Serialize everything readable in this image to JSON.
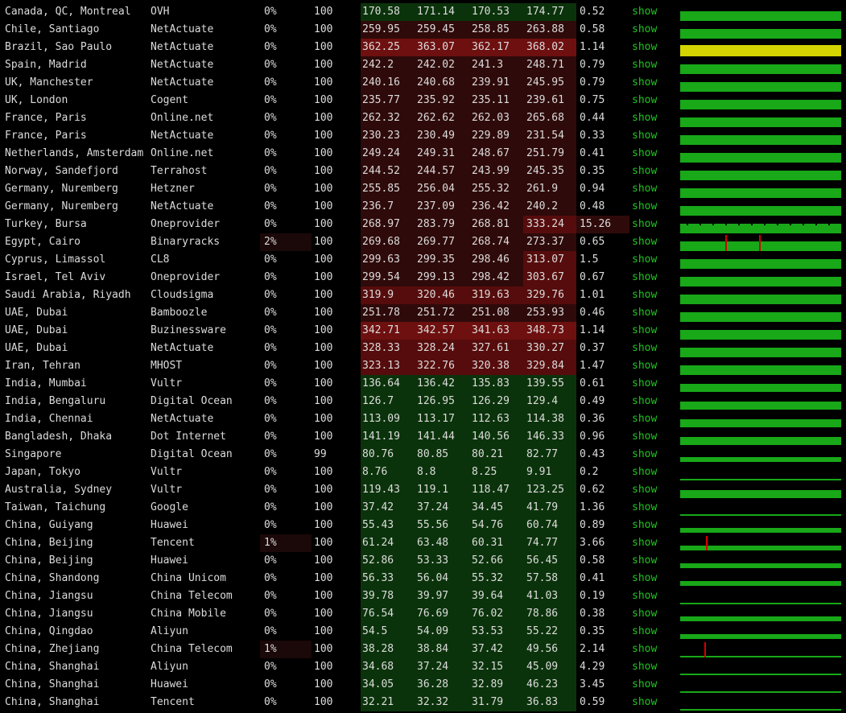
{
  "colors": {
    "background": "#000000",
    "text": "#dcdcdc",
    "link": "#22c322",
    "latency_low": "#0b330b",
    "latency_mid": "#2f0a0a",
    "latency_high": "#560c0c",
    "latency_very_high": "#6e1010",
    "loss_cell": "#1b0808",
    "graph_ok": "#18a818",
    "graph_warn": "#d4d400",
    "graph_spike": "#d40000"
  },
  "rows": [
    {
      "location": "Canada, QC, Montreal",
      "provider": "OVH",
      "loss": "0%",
      "sent": "100",
      "avg": "170.58",
      "last": "171.14",
      "best": "170.53",
      "worst": "174.77",
      "stdev": "0.52",
      "link": "show",
      "graph": "full",
      "spikes": []
    },
    {
      "location": "Chile, Santiago",
      "provider": "NetActuate",
      "loss": "0%",
      "sent": "100",
      "avg": "259.95",
      "last": "259.45",
      "best": "258.85",
      "worst": "263.88",
      "stdev": "0.58",
      "link": "show",
      "graph": "full",
      "spikes": []
    },
    {
      "location": "Brazil, Sao Paulo",
      "provider": "NetActuate",
      "loss": "0%",
      "sent": "100",
      "avg": "362.25",
      "last": "363.07",
      "best": "362.17",
      "worst": "368.02",
      "stdev": "1.14",
      "link": "show",
      "graph": "yellow",
      "spikes": []
    },
    {
      "location": "Spain, Madrid",
      "provider": "NetActuate",
      "loss": "0%",
      "sent": "100",
      "avg": "242.2",
      "last": "242.02",
      "best": "241.3",
      "worst": "248.71",
      "stdev": "0.79",
      "link": "show",
      "graph": "full",
      "spikes": []
    },
    {
      "location": "UK, Manchester",
      "provider": "NetActuate",
      "loss": "0%",
      "sent": "100",
      "avg": "240.16",
      "last": "240.68",
      "best": "239.91",
      "worst": "245.95",
      "stdev": "0.79",
      "link": "show",
      "graph": "full",
      "spikes": []
    },
    {
      "location": "UK, London",
      "provider": "Cogent",
      "loss": "0%",
      "sent": "100",
      "avg": "235.77",
      "last": "235.92",
      "best": "235.11",
      "worst": "239.61",
      "stdev": "0.75",
      "link": "show",
      "graph": "full",
      "spikes": []
    },
    {
      "location": "France, Paris",
      "provider": "Online.net",
      "loss": "0%",
      "sent": "100",
      "avg": "262.32",
      "last": "262.62",
      "best": "262.03",
      "worst": "265.68",
      "stdev": "0.44",
      "link": "show",
      "graph": "full",
      "spikes": []
    },
    {
      "location": "France, Paris",
      "provider": "NetActuate",
      "loss": "0%",
      "sent": "100",
      "avg": "230.23",
      "last": "230.49",
      "best": "229.89",
      "worst": "231.54",
      "stdev": "0.33",
      "link": "show",
      "graph": "full",
      "spikes": []
    },
    {
      "location": "Netherlands, Amsterdam",
      "provider": "Online.net",
      "loss": "0%",
      "sent": "100",
      "avg": "249.24",
      "last": "249.31",
      "best": "248.67",
      "worst": "251.79",
      "stdev": "0.41",
      "link": "show",
      "graph": "full",
      "spikes": []
    },
    {
      "location": "Norway, Sandefjord",
      "provider": "Terrahost",
      "loss": "0%",
      "sent": "100",
      "avg": "244.52",
      "last": "244.57",
      "best": "243.99",
      "worst": "245.35",
      "stdev": "0.35",
      "link": "show",
      "graph": "full",
      "spikes": []
    },
    {
      "location": "Germany, Nuremberg",
      "provider": "Hetzner",
      "loss": "0%",
      "sent": "100",
      "avg": "255.85",
      "last": "256.04",
      "best": "255.32",
      "worst": "261.9",
      "stdev": "0.94",
      "link": "show",
      "graph": "full",
      "spikes": []
    },
    {
      "location": "Germany, Nuremberg",
      "provider": "NetActuate",
      "loss": "0%",
      "sent": "100",
      "avg": "236.7",
      "last": "237.09",
      "best": "236.42",
      "worst": "240.2",
      "stdev": "0.48",
      "link": "show",
      "graph": "full",
      "spikes": []
    },
    {
      "location": "Turkey, Bursa",
      "provider": "Oneprovider",
      "loss": "0%",
      "sent": "100",
      "avg": "268.97",
      "last": "283.79",
      "best": "268.81",
      "worst": "333.24",
      "stdev": "15.26",
      "link": "show",
      "graph": "jagged",
      "spikes": []
    },
    {
      "location": "Egypt, Cairo",
      "provider": "Binaryracks",
      "loss": "2%",
      "sent": "100",
      "avg": "269.68",
      "last": "269.77",
      "best": "268.74",
      "worst": "273.37",
      "stdev": "0.65",
      "link": "show",
      "graph": "full",
      "spikes": [
        0.28,
        0.49
      ]
    },
    {
      "location": "Cyprus, Limassol",
      "provider": "CL8",
      "loss": "0%",
      "sent": "100",
      "avg": "299.63",
      "last": "299.35",
      "best": "298.46",
      "worst": "313.07",
      "stdev": "1.5",
      "link": "show",
      "graph": "full",
      "spikes": []
    },
    {
      "location": "Israel, Tel Aviv",
      "provider": "Oneprovider",
      "loss": "0%",
      "sent": "100",
      "avg": "299.54",
      "last": "299.13",
      "best": "298.42",
      "worst": "303.67",
      "stdev": "0.67",
      "link": "show",
      "graph": "full",
      "spikes": []
    },
    {
      "location": "Saudi Arabia, Riyadh",
      "provider": "Cloudsigma",
      "loss": "0%",
      "sent": "100",
      "avg": "319.9",
      "last": "320.46",
      "best": "319.63",
      "worst": "329.76",
      "stdev": "1.01",
      "link": "show",
      "graph": "full",
      "spikes": []
    },
    {
      "location": "UAE, Dubai",
      "provider": "Bamboozle",
      "loss": "0%",
      "sent": "100",
      "avg": "251.78",
      "last": "251.72",
      "best": "251.08",
      "worst": "253.93",
      "stdev": "0.46",
      "link": "show",
      "graph": "full",
      "spikes": []
    },
    {
      "location": "UAE, Dubai",
      "provider": "Buzinessware",
      "loss": "0%",
      "sent": "100",
      "avg": "342.71",
      "last": "342.57",
      "best": "341.63",
      "worst": "348.73",
      "stdev": "1.14",
      "link": "show",
      "graph": "full",
      "spikes": []
    },
    {
      "location": "UAE, Dubai",
      "provider": "NetActuate",
      "loss": "0%",
      "sent": "100",
      "avg": "328.33",
      "last": "328.24",
      "best": "327.61",
      "worst": "330.27",
      "stdev": "0.37",
      "link": "show",
      "graph": "full",
      "spikes": []
    },
    {
      "location": "Iran, Tehran",
      "provider": "MHOST",
      "loss": "0%",
      "sent": "100",
      "avg": "323.13",
      "last": "322.76",
      "best": "320.38",
      "worst": "329.84",
      "stdev": "1.47",
      "link": "show",
      "graph": "full",
      "spikes": []
    },
    {
      "location": "India, Mumbai",
      "provider": "Vultr",
      "loss": "0%",
      "sent": "100",
      "avg": "136.64",
      "last": "136.42",
      "best": "135.83",
      "worst": "139.55",
      "stdev": "0.61",
      "link": "show",
      "graph": "medium",
      "spikes": []
    },
    {
      "location": "India, Bengaluru",
      "provider": "Digital Ocean",
      "loss": "0%",
      "sent": "100",
      "avg": "126.7",
      "last": "126.95",
      "best": "126.29",
      "worst": "129.4",
      "stdev": "0.49",
      "link": "show",
      "graph": "medium",
      "spikes": []
    },
    {
      "location": "India, Chennai",
      "provider": "NetActuate",
      "loss": "0%",
      "sent": "100",
      "avg": "113.09",
      "last": "113.17",
      "best": "112.63",
      "worst": "114.38",
      "stdev": "0.36",
      "link": "show",
      "graph": "medium",
      "spikes": []
    },
    {
      "location": "Bangladesh, Dhaka",
      "provider": "Dot Internet",
      "loss": "0%",
      "sent": "100",
      "avg": "141.19",
      "last": "141.44",
      "best": "140.56",
      "worst": "146.33",
      "stdev": "0.96",
      "link": "show",
      "graph": "medium",
      "spikes": []
    },
    {
      "location": "Singapore",
      "provider": "Digital Ocean",
      "loss": "0%",
      "sent": "99",
      "avg": "80.76",
      "last": "80.85",
      "best": "80.21",
      "worst": "82.77",
      "stdev": "0.43",
      "link": "show",
      "graph": "short",
      "spikes": []
    },
    {
      "location": "Japan, Tokyo",
      "provider": "Vultr",
      "loss": "0%",
      "sent": "100",
      "avg": "8.76",
      "last": "8.8",
      "best": "8.25",
      "worst": "9.91",
      "stdev": "0.2",
      "link": "show",
      "graph": "thin",
      "spikes": []
    },
    {
      "location": "Australia, Sydney",
      "provider": "Vultr",
      "loss": "0%",
      "sent": "100",
      "avg": "119.43",
      "last": "119.1",
      "best": "118.47",
      "worst": "123.25",
      "stdev": "0.62",
      "link": "show",
      "graph": "medium",
      "spikes": []
    },
    {
      "location": "Taiwan, Taichung",
      "provider": "Google",
      "loss": "0%",
      "sent": "100",
      "avg": "37.42",
      "last": "37.24",
      "best": "34.45",
      "worst": "41.79",
      "stdev": "1.36",
      "link": "show",
      "graph": "thin",
      "spikes": []
    },
    {
      "location": "China, Guiyang",
      "provider": "Huawei",
      "loss": "0%",
      "sent": "100",
      "avg": "55.43",
      "last": "55.56",
      "best": "54.76",
      "worst": "60.74",
      "stdev": "0.89",
      "link": "show",
      "graph": "short",
      "spikes": []
    },
    {
      "location": "China, Beijing",
      "provider": "Tencent",
      "loss": "1%",
      "sent": "100",
      "avg": "61.24",
      "last": "63.48",
      "best": "60.31",
      "worst": "74.77",
      "stdev": "3.66",
      "link": "show",
      "graph": "short",
      "spikes": [
        0.16
      ]
    },
    {
      "location": "China, Beijing",
      "provider": "Huawei",
      "loss": "0%",
      "sent": "100",
      "avg": "52.86",
      "last": "53.33",
      "best": "52.66",
      "worst": "56.45",
      "stdev": "0.58",
      "link": "show",
      "graph": "short",
      "spikes": []
    },
    {
      "location": "China, Shandong",
      "provider": "China Unicom",
      "loss": "0%",
      "sent": "100",
      "avg": "56.33",
      "last": "56.04",
      "best": "55.32",
      "worst": "57.58",
      "stdev": "0.41",
      "link": "show",
      "graph": "short",
      "spikes": []
    },
    {
      "location": "China, Jiangsu",
      "provider": "China Telecom",
      "loss": "0%",
      "sent": "100",
      "avg": "39.78",
      "last": "39.97",
      "best": "39.64",
      "worst": "41.03",
      "stdev": "0.19",
      "link": "show",
      "graph": "thin",
      "spikes": []
    },
    {
      "location": "China, Jiangsu",
      "provider": "China Mobile",
      "loss": "0%",
      "sent": "100",
      "avg": "76.54",
      "last": "76.69",
      "best": "76.02",
      "worst": "78.86",
      "stdev": "0.38",
      "link": "show",
      "graph": "short",
      "spikes": []
    },
    {
      "location": "China, Qingdao",
      "provider": "Aliyun",
      "loss": "0%",
      "sent": "100",
      "avg": "54.5",
      "last": "54.09",
      "best": "53.53",
      "worst": "55.22",
      "stdev": "0.35",
      "link": "show",
      "graph": "short",
      "spikes": []
    },
    {
      "location": "China, Zhejiang",
      "provider": "China Telecom",
      "loss": "1%",
      "sent": "100",
      "avg": "38.28",
      "last": "38.84",
      "best": "37.42",
      "worst": "49.56",
      "stdev": "2.14",
      "link": "show",
      "graph": "thin",
      "spikes": [
        0.15
      ]
    },
    {
      "location": "China, Shanghai",
      "provider": "Aliyun",
      "loss": "0%",
      "sent": "100",
      "avg": "34.68",
      "last": "37.24",
      "best": "32.15",
      "worst": "45.09",
      "stdev": "4.29",
      "link": "show",
      "graph": "thin",
      "spikes": []
    },
    {
      "location": "China, Shanghai",
      "provider": "Huawei",
      "loss": "0%",
      "sent": "100",
      "avg": "34.05",
      "last": "36.28",
      "best": "32.89",
      "worst": "46.23",
      "stdev": "3.45",
      "link": "show",
      "graph": "thin",
      "spikes": []
    },
    {
      "location": "China, Shanghai",
      "provider": "Tencent",
      "loss": "0%",
      "sent": "100",
      "avg": "32.21",
      "last": "32.32",
      "best": "31.79",
      "worst": "36.83",
      "stdev": "0.59",
      "link": "show",
      "graph": "thin",
      "spikes": []
    }
  ]
}
